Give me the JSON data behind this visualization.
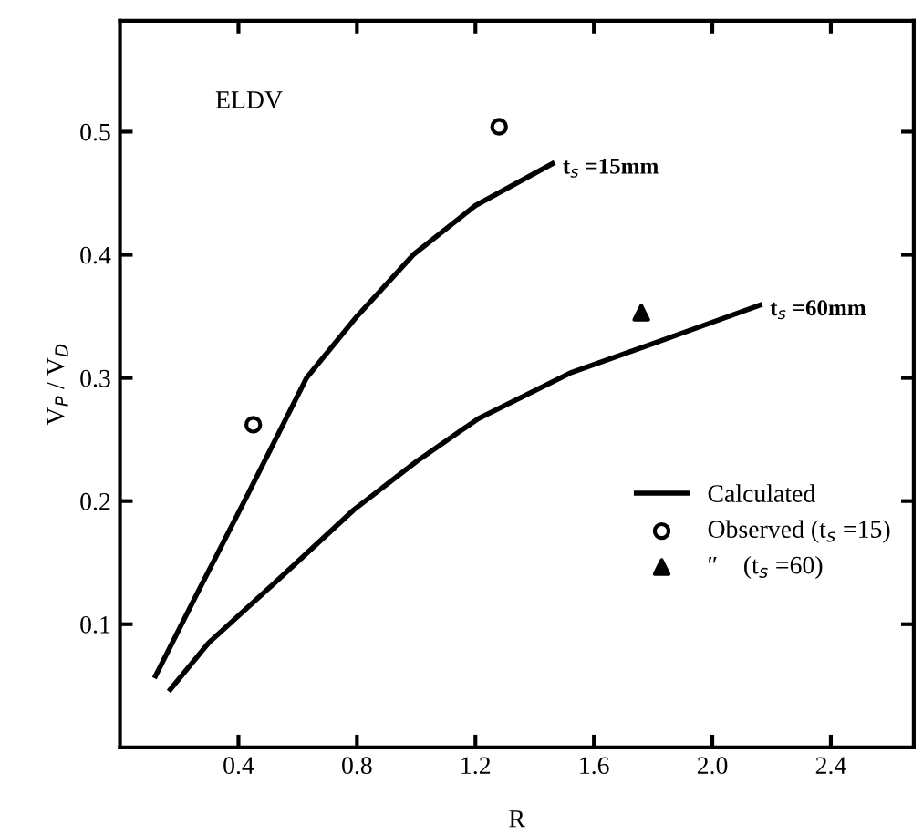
{
  "chart_data": {
    "type": "line",
    "xlabel": "R",
    "ylabel": "V$_{P}$ / V$_{D}$",
    "xlim": [
      0,
      2.68
    ],
    "ylim": [
      0,
      0.59
    ],
    "xticks": [
      {
        "value": 0.4,
        "label": "0.4"
      },
      {
        "value": 0.8,
        "label": "0.8"
      },
      {
        "value": 1.2,
        "label": "1.2"
      },
      {
        "value": 1.6,
        "label": "1.6"
      },
      {
        "value": 2.0,
        "label": "2.0"
      },
      {
        "value": 2.4,
        "label": "2.4"
      }
    ],
    "yticks": [
      0.1,
      0.2,
      0.3,
      0.4,
      0.5
    ],
    "grid": false,
    "legend": "bottom right",
    "series": [
      {
        "name": "Calculated",
        "color": "#000000",
        "x": [
          0.12,
          0.25,
          0.42,
          0.63,
          0.8,
          0.99,
          1.2,
          1.46
        ],
        "values": [
          0.058,
          0.12,
          0.2,
          0.3,
          0.35,
          0.4,
          0.44,
          0.474
        ]
      },
      {
        "color": "#000000",
        "x": [
          0.17,
          0.3,
          0.52,
          0.79,
          1.0,
          1.21,
          1.52,
          1.8,
          2.16
        ],
        "values": [
          0.047,
          0.085,
          0.133,
          0.193,
          0.232,
          0.267,
          0.304,
          0.328,
          0.359
        ]
      },
      {
        "name": "Observed (t$_{s}$ =15)",
        "type": "scatter",
        "marker": "circle",
        "color": "#000000",
        "x": [
          0.45,
          1.28
        ],
        "values": [
          0.262,
          0.504
        ]
      },
      {
        "name": "″    (t$_{s}$ =60)",
        "type": "scatter",
        "marker": "triangle",
        "color": "#000000",
        "x": [
          1.76
        ],
        "values": [
          0.353
        ]
      }
    ],
    "annotations": [
      "ELDV",
      {
        "text": "t$_{s}$ =15mm",
        "x": 1.46,
        "y": 0.474
      },
      {
        "text": "t$_{s}$ =60mm",
        "x": 2.16,
        "y": 0.359
      }
    ]
  }
}
